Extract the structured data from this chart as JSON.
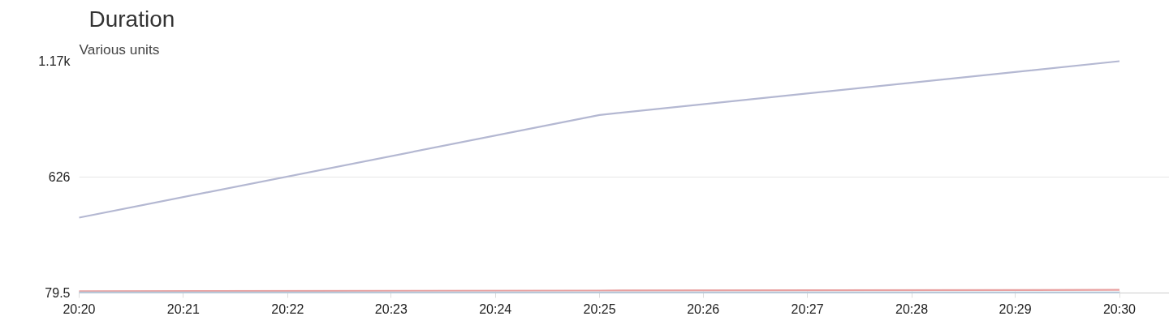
{
  "chart_data": {
    "type": "line",
    "title": "Duration",
    "ylabel": "Various units",
    "x": [
      20.3333,
      20.4167,
      20.5
    ],
    "series": [
      {
        "color": "#b4b8d2",
        "values": [
          434,
          917,
          1170
        ]
      },
      {
        "color": "#e8a0a0",
        "values": [
          88,
          91,
          94
        ]
      },
      {
        "color": "#b8c8d8",
        "values": [
          82,
          82,
          82
        ]
      }
    ],
    "xlim": [
      20.3333,
      20.508
    ],
    "xticks": [
      {
        "value": 20.3333,
        "label": "20:20"
      },
      {
        "value": 20.35,
        "label": "20:21"
      },
      {
        "value": 20.3667,
        "label": "20:22"
      },
      {
        "value": 20.3833,
        "label": "20:23"
      },
      {
        "value": 20.4,
        "label": "20:24"
      },
      {
        "value": 20.4167,
        "label": "20:25"
      },
      {
        "value": 20.4333,
        "label": "20:26"
      },
      {
        "value": 20.45,
        "label": "20:27"
      },
      {
        "value": 20.4667,
        "label": "20:28"
      },
      {
        "value": 20.4833,
        "label": "20:29"
      },
      {
        "value": 20.5,
        "label": "20:30"
      }
    ],
    "ylim": [
      79.5,
      1170
    ],
    "yticks": [
      79.5,
      626,
      {
        "value": 1170,
        "label": "1.17k"
      }
    ],
    "grid": "y",
    "marker": "none",
    "line_style": "solid"
  }
}
